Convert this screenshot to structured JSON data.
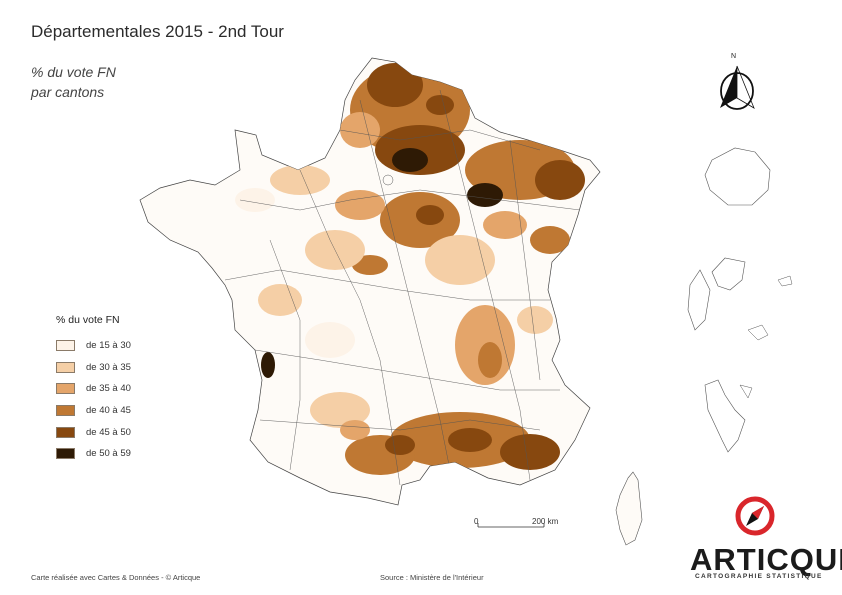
{
  "map": {
    "title": "Départementales 2015 - 2nd Tour",
    "subtitle_line1": "% du vote FN",
    "subtitle_line2": "par cantons"
  },
  "legend": {
    "title": "% du vote FN",
    "classes": [
      {
        "label": "de 15 à 30",
        "color": "#fdf3e8"
      },
      {
        "label": "de 30 à 35",
        "color": "#f5cfa6"
      },
      {
        "label": "de 35 à 40",
        "color": "#e4a56a"
      },
      {
        "label": "de 40 à 45",
        "color": "#bf7833"
      },
      {
        "label": "de 45 à 50",
        "color": "#87480f"
      },
      {
        "label": "de 50 à 59",
        "color": "#2e1a05"
      }
    ]
  },
  "scale_bar": {
    "start": "0",
    "end": "200  km"
  },
  "north_arrow": {
    "label": "N"
  },
  "footer": {
    "credit": "Carte réalisée avec Cartes & Données - © Articque",
    "source": "Source : Ministère de l'Intérieur"
  },
  "brand": {
    "name": "ARTICQUE",
    "tagline": "CARTOGRAPHIE STATISTIQUE",
    "accent_color": "#d9262b"
  },
  "icons": [
    "north-arrow-icon",
    "articque-compass-logo-icon"
  ]
}
